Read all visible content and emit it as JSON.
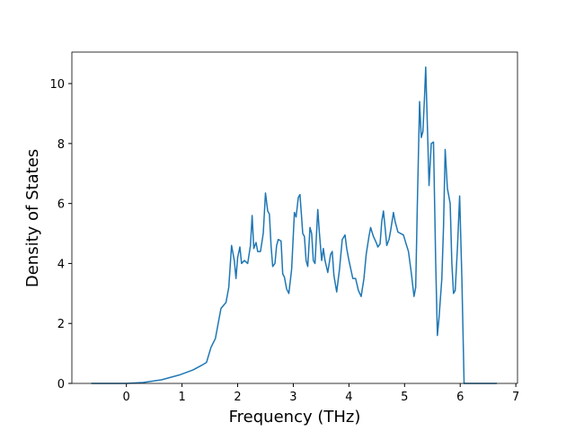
{
  "chart_data": {
    "type": "line",
    "xlabel": "Frequency (THz)",
    "ylabel": "Density of States",
    "x": [
      -0.63,
      0,
      0.3,
      0.63,
      0.95,
      1.2,
      1.35,
      1.44,
      1.52,
      1.6,
      1.7,
      1.79,
      1.84,
      1.89,
      1.94,
      1.97,
      2.0,
      2.04,
      2.07,
      2.12,
      2.18,
      2.23,
      2.26,
      2.29,
      2.33,
      2.36,
      2.41,
      2.46,
      2.5,
      2.54,
      2.57,
      2.6,
      2.63,
      2.67,
      2.7,
      2.73,
      2.78,
      2.81,
      2.84,
      2.88,
      2.92,
      2.97,
      3.02,
      3.05,
      3.09,
      3.12,
      3.17,
      3.2,
      3.23,
      3.26,
      3.3,
      3.33,
      3.36,
      3.39,
      3.44,
      3.47,
      3.51,
      3.54,
      3.57,
      3.62,
      3.67,
      3.7,
      3.73,
      3.78,
      3.83,
      3.88,
      3.93,
      3.96,
      4.0,
      4.07,
      4.12,
      4.17,
      4.22,
      4.27,
      4.31,
      4.36,
      4.39,
      4.44,
      4.49,
      4.52,
      4.56,
      4.59,
      4.62,
      4.65,
      4.68,
      4.72,
      4.75,
      4.8,
      4.83,
      4.88,
      4.93,
      4.98,
      5.02,
      5.07,
      5.12,
      5.17,
      5.2,
      5.23,
      5.27,
      5.3,
      5.33,
      5.36,
      5.38,
      5.41,
      5.44,
      5.48,
      5.52,
      5.56,
      5.59,
      5.62,
      5.67,
      5.7,
      5.73,
      5.77,
      5.82,
      5.85,
      5.88,
      5.91,
      5.95,
      5.99,
      6.03,
      6.07,
      6.66
    ],
    "values": [
      0,
      0,
      0.03,
      0.12,
      0.28,
      0.45,
      0.6,
      0.7,
      1.2,
      1.5,
      2.5,
      2.7,
      3.2,
      4.6,
      4.1,
      3.5,
      4.2,
      4.55,
      4.0,
      4.1,
      4.0,
      4.6,
      5.6,
      4.5,
      4.7,
      4.4,
      4.4,
      5.0,
      6.35,
      5.75,
      5.65,
      4.6,
      3.9,
      4.0,
      4.6,
      4.8,
      4.75,
      3.65,
      3.55,
      3.15,
      3.0,
      3.8,
      5.7,
      5.55,
      6.2,
      6.3,
      5.0,
      4.9,
      4.1,
      3.9,
      5.2,
      5.0,
      4.1,
      4.0,
      5.8,
      5.0,
      4.1,
      4.5,
      4.1,
      3.7,
      4.3,
      4.4,
      3.6,
      3.05,
      3.8,
      4.8,
      4.95,
      4.5,
      4.1,
      3.5,
      3.5,
      3.1,
      2.9,
      3.5,
      4.3,
      4.9,
      5.2,
      4.9,
      4.7,
      4.55,
      4.65,
      5.4,
      5.75,
      5.2,
      4.6,
      4.8,
      5.1,
      5.7,
      5.4,
      5.05,
      5.0,
      4.95,
      4.7,
      4.4,
      3.7,
      2.9,
      3.2,
      6.0,
      9.4,
      8.2,
      8.4,
      9.6,
      10.55,
      8.6,
      6.6,
      8.0,
      8.05,
      4.0,
      1.6,
      2.2,
      3.5,
      5.2,
      7.8,
      6.5,
      6.0,
      4.0,
      3.0,
      3.1,
      4.5,
      6.25,
      3.5,
      0,
      0
    ],
    "color": "#1f77b4",
    "xlim": [
      -0.98,
      7.03
    ],
    "ylim": [
      0,
      11.05
    ],
    "xticks": [
      0,
      1,
      2,
      3,
      4,
      5,
      6,
      7
    ],
    "yticks": [
      0,
      2,
      4,
      6,
      8,
      10
    ]
  }
}
